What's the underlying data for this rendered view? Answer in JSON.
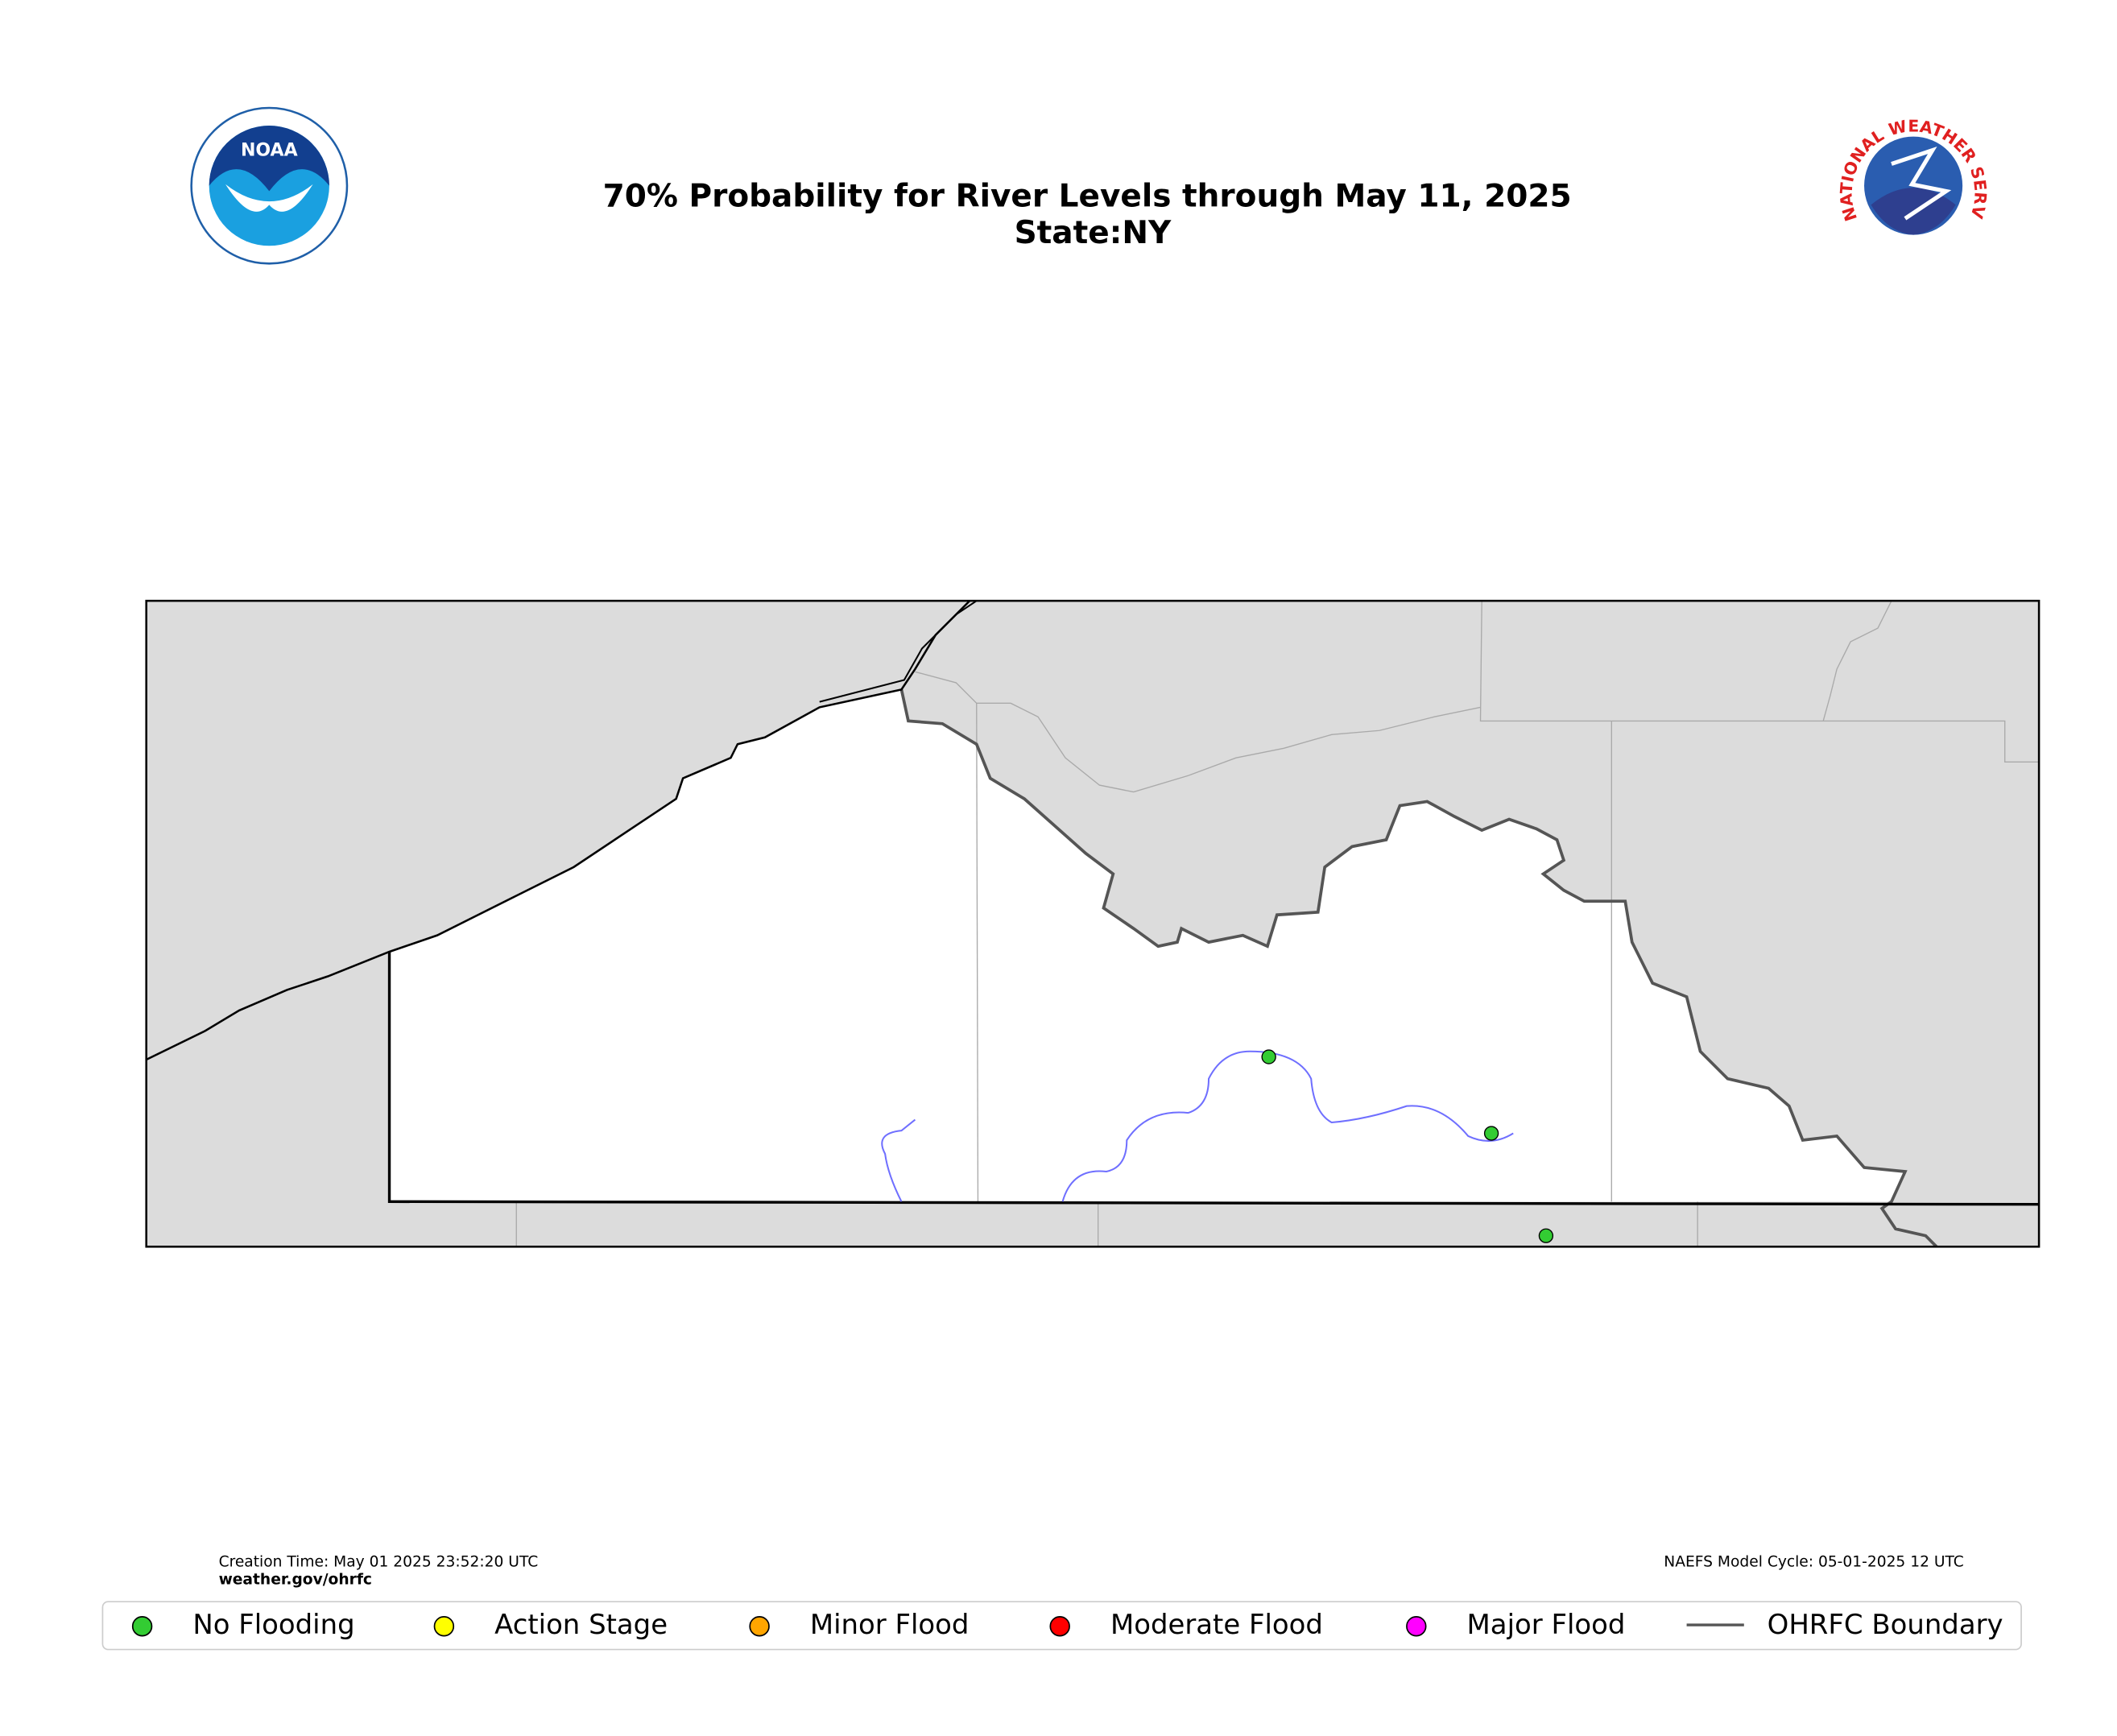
{
  "header": {
    "title": "70% Probability for River Levels through May 11, 2025",
    "subtitle": "State:NY",
    "noaa_logo": "NOAA",
    "nws_logo": "NATIONAL WEATHER SERVICE"
  },
  "footer": {
    "creation_time": "Creation Time: May 01 2025 23:52:20 UTC",
    "website": "weather.gov/ohrfc",
    "model_cycle": "NAEFS Model Cycle: 05-01-2025 12 UTC"
  },
  "legend": [
    {
      "label": "No Flooding",
      "color": "#33cc33"
    },
    {
      "label": "Action Stage",
      "color": "#ffff00"
    },
    {
      "label": "Minor Flood",
      "color": "#ffa500"
    },
    {
      "label": "Moderate Flood",
      "color": "#ff0000"
    },
    {
      "label": "Major Flood",
      "color": "#ff00ff"
    },
    {
      "label": "OHRFC Boundary",
      "color": "#555555"
    }
  ]
}
